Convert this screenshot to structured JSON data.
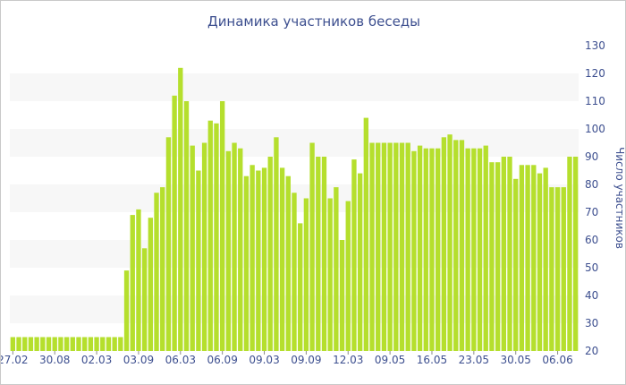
{
  "chart_data": {
    "type": "bar",
    "title": "Динамика участников беседы",
    "xlabel": "",
    "ylabel": "Число участников",
    "ylim": [
      20,
      130
    ],
    "y_ticks": [
      20,
      30,
      40,
      50,
      60,
      70,
      80,
      90,
      100,
      110,
      120,
      130
    ],
    "y_axis_position": "right",
    "grid": "alternating horizontal bands",
    "bar_color": "#b5df2d",
    "x_tick_labels": [
      {
        "label": "27.02",
        "index": 0
      },
      {
        "label": "30.08",
        "index": 7
      },
      {
        "label": "02.03",
        "index": 14
      },
      {
        "label": "03.09",
        "index": 21
      },
      {
        "label": "06.03",
        "index": 28
      },
      {
        "label": "06.09",
        "index": 35
      },
      {
        "label": "09.03",
        "index": 42
      },
      {
        "label": "09.09",
        "index": 49
      },
      {
        "label": "12.03",
        "index": 56
      },
      {
        "label": "09.05",
        "index": 63
      },
      {
        "label": "16.05",
        "index": 70
      },
      {
        "label": "23.05",
        "index": 77
      },
      {
        "label": "30.05",
        "index": 84
      },
      {
        "label": "06.06",
        "index": 91
      }
    ],
    "values": [
      25,
      25,
      25,
      25,
      25,
      25,
      25,
      25,
      25,
      25,
      25,
      25,
      25,
      25,
      25,
      25,
      25,
      25,
      25,
      49,
      69,
      71,
      57,
      68,
      77,
      79,
      97,
      112,
      122,
      110,
      94,
      85,
      95,
      103,
      102,
      110,
      92,
      95,
      93,
      83,
      87,
      85,
      86,
      90,
      97,
      86,
      83,
      77,
      66,
      75,
      95,
      90,
      90,
      75,
      79,
      60,
      74,
      89,
      84,
      104,
      95,
      95,
      95,
      95,
      95,
      95,
      95,
      92,
      94,
      93,
      93,
      93,
      97,
      98,
      96,
      96,
      93,
      93,
      93,
      94,
      88,
      88,
      90,
      90,
      82,
      87,
      87,
      87,
      84,
      86,
      79,
      79,
      79,
      90,
      90
    ]
  }
}
